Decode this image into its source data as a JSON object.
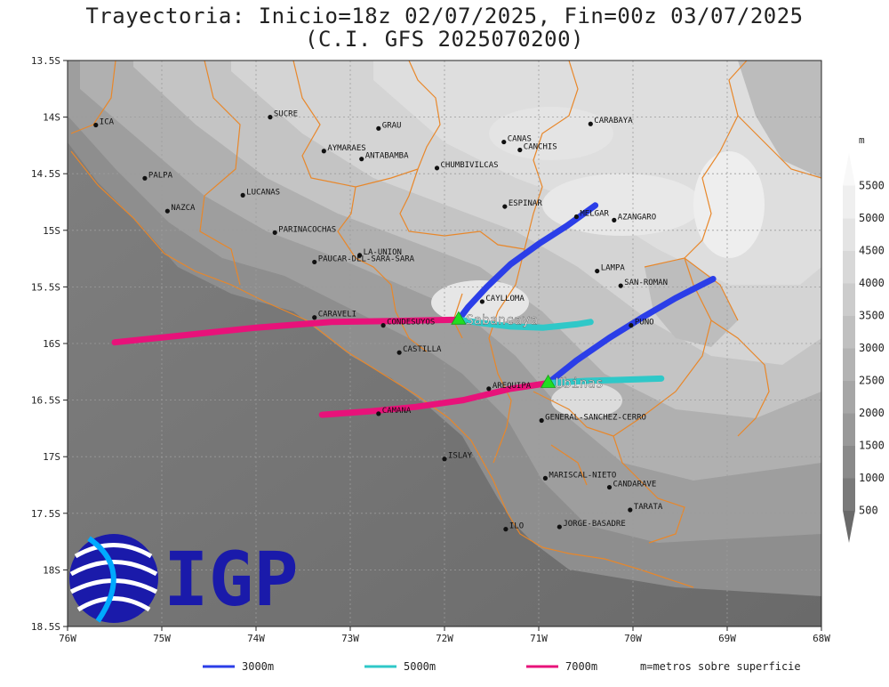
{
  "title": {
    "line1": "Trayectoria: Inicio=18z 02/07/2025, Fin=00z 03/07/2025",
    "line2": "(C.I. GFS 2025070200)"
  },
  "axes": {
    "lon_range": [
      -76,
      -68
    ],
    "lat_range": [
      -18.5,
      -13.5
    ],
    "x_ticks": [
      {
        "lon": -76,
        "label": "76W"
      },
      {
        "lon": -75,
        "label": "75W"
      },
      {
        "lon": -74,
        "label": "74W"
      },
      {
        "lon": -73,
        "label": "73W"
      },
      {
        "lon": -72,
        "label": "72W"
      },
      {
        "lon": -71,
        "label": "71W"
      },
      {
        "lon": -70,
        "label": "70W"
      },
      {
        "lon": -69,
        "label": "69W"
      },
      {
        "lon": -68,
        "label": "68W"
      }
    ],
    "y_ticks": [
      {
        "lat": -13.5,
        "label": "13.5S"
      },
      {
        "lat": -14,
        "label": "14S"
      },
      {
        "lat": -14.5,
        "label": "14.5S"
      },
      {
        "lat": -15,
        "label": "15S"
      },
      {
        "lat": -15.5,
        "label": "15.5S"
      },
      {
        "lat": -16,
        "label": "16S"
      },
      {
        "lat": -16.5,
        "label": "16.5S"
      },
      {
        "lat": -17,
        "label": "17S"
      },
      {
        "lat": -17.5,
        "label": "17.5S"
      },
      {
        "lat": -18,
        "label": "18S"
      },
      {
        "lat": -18.5,
        "label": "18.5S"
      }
    ],
    "grid": true
  },
  "colorbar": {
    "unit": "m",
    "labels": [
      "500",
      "1000",
      "1500",
      "2000",
      "2500",
      "3000",
      "3500",
      "4000",
      "4500",
      "5000",
      "5500"
    ],
    "colors": [
      "#6a6a6a",
      "#7a7a7a",
      "#8a8a8a",
      "#999999",
      "#a6a6a6",
      "#b3b3b3",
      "#c0c0c0",
      "#cccccc",
      "#d8d8d8",
      "#e4e4e4",
      "#efefef",
      "#f8f8f8"
    ]
  },
  "volcanoes": [
    {
      "name": "Sabancaya",
      "lon": -71.85,
      "lat": -15.79,
      "color": "#22dd22"
    },
    {
      "name": "Ubinas",
      "lon": -70.9,
      "lat": -16.35,
      "color": "#22dd22"
    }
  ],
  "trajectories": [
    {
      "volcano": "Sabancaya",
      "level": "3000m",
      "color": "#2b3ee8",
      "points": [
        [
          -71.85,
          -15.79
        ],
        [
          -71.75,
          -15.68
        ],
        [
          -71.55,
          -15.5
        ],
        [
          -71.3,
          -15.3
        ],
        [
          -71.0,
          -15.12
        ],
        [
          -70.7,
          -14.96
        ],
        [
          -70.4,
          -14.78
        ]
      ]
    },
    {
      "volcano": "Sabancaya",
      "level": "5000m",
      "color": "#2fc8c8",
      "points": [
        [
          -71.85,
          -15.79
        ],
        [
          -71.6,
          -15.82
        ],
        [
          -71.3,
          -15.85
        ],
        [
          -70.95,
          -15.86
        ],
        [
          -70.6,
          -15.83
        ],
        [
          -70.45,
          -15.81
        ]
      ]
    },
    {
      "volcano": "Sabancaya",
      "level": "7000m",
      "color": "#e8127a",
      "points": [
        [
          -71.85,
          -15.79
        ],
        [
          -72.5,
          -15.8
        ],
        [
          -73.2,
          -15.81
        ],
        [
          -74.0,
          -15.86
        ],
        [
          -74.8,
          -15.93
        ],
        [
          -75.5,
          -15.99
        ]
      ]
    },
    {
      "volcano": "Ubinas",
      "level": "3000m",
      "color": "#2b3ee8",
      "points": [
        [
          -70.9,
          -16.35
        ],
        [
          -70.6,
          -16.15
        ],
        [
          -70.25,
          -15.95
        ],
        [
          -69.9,
          -15.77
        ],
        [
          -69.55,
          -15.6
        ],
        [
          -69.15,
          -15.43
        ]
      ]
    },
    {
      "volcano": "Ubinas",
      "level": "5000m",
      "color": "#2fc8c8",
      "points": [
        [
          -70.9,
          -16.35
        ],
        [
          -70.5,
          -16.33
        ],
        [
          -70.1,
          -16.32
        ],
        [
          -69.7,
          -16.31
        ]
      ]
    },
    {
      "volcano": "Ubinas",
      "level": "7000m",
      "color": "#e8127a",
      "points": [
        [
          -70.9,
          -16.35
        ],
        [
          -71.3,
          -16.4
        ],
        [
          -71.8,
          -16.5
        ],
        [
          -72.3,
          -16.56
        ],
        [
          -72.8,
          -16.6
        ],
        [
          -73.3,
          -16.63
        ]
      ]
    }
  ],
  "places": [
    {
      "name": "ICA",
      "lon": -75.7,
      "lat": -14.07
    },
    {
      "name": "SUCRE",
      "lon": -73.85,
      "lat": -14.0
    },
    {
      "name": "GRAU",
      "lon": -72.7,
      "lat": -14.1
    },
    {
      "name": "AYMARAES",
      "lon": -73.28,
      "lat": -14.3
    },
    {
      "name": "ANTABAMBA",
      "lon": -72.88,
      "lat": -14.37
    },
    {
      "name": "CHUMBIVILCAS",
      "lon": -72.08,
      "lat": -14.45
    },
    {
      "name": "CANAS",
      "lon": -71.37,
      "lat": -14.22
    },
    {
      "name": "CANCHIS",
      "lon": -71.2,
      "lat": -14.29
    },
    {
      "name": "CARABAYA",
      "lon": -70.45,
      "lat": -14.06
    },
    {
      "name": "PALPA",
      "lon": -75.18,
      "lat": -14.54
    },
    {
      "name": "NAZCA",
      "lon": -74.94,
      "lat": -14.83
    },
    {
      "name": "LUCANAS",
      "lon": -74.14,
      "lat": -14.69
    },
    {
      "name": "ESPINAR",
      "lon": -71.36,
      "lat": -14.79
    },
    {
      "name": "MELGAR",
      "lon": -70.6,
      "lat": -14.88
    },
    {
      "name": "AZANGARO",
      "lon": -70.2,
      "lat": -14.91
    },
    {
      "name": "PARINACOCHAS",
      "lon": -73.8,
      "lat": -15.02
    },
    {
      "name": "LA-UNION",
      "lon": -72.9,
      "lat": -15.22
    },
    {
      "name": "PAUCAR-DEL-SARA-SARA",
      "lon": -73.38,
      "lat": -15.28
    },
    {
      "name": "LAMPA",
      "lon": -70.38,
      "lat": -15.36
    },
    {
      "name": "SAN-ROMAN",
      "lon": -70.13,
      "lat": -15.49
    },
    {
      "name": "CAYLLOMA",
      "lon": -71.6,
      "lat": -15.63
    },
    {
      "name": "CARAVELI",
      "lon": -73.38,
      "lat": -15.77
    },
    {
      "name": "CONDESUYOS",
      "lon": -72.65,
      "lat": -15.84
    },
    {
      "name": "PUNO",
      "lon": -70.02,
      "lat": -15.84
    },
    {
      "name": "CASTILLA",
      "lon": -72.48,
      "lat": -16.08
    },
    {
      "name": "AREQUIPA",
      "lon": -71.53,
      "lat": -16.4
    },
    {
      "name": "CAMANA",
      "lon": -72.7,
      "lat": -16.62
    },
    {
      "name": "GENERAL-SANCHEZ-CERRO",
      "lon": -70.97,
      "lat": -16.68
    },
    {
      "name": "ISLAY",
      "lon": -72.0,
      "lat": -17.02
    },
    {
      "name": "MARISCAL-NIETO",
      "lon": -70.93,
      "lat": -17.19
    },
    {
      "name": "CANDARAVE",
      "lon": -70.25,
      "lat": -17.27
    },
    {
      "name": "TARATA",
      "lon": -70.03,
      "lat": -17.47
    },
    {
      "name": "ILO",
      "lon": -71.35,
      "lat": -17.64
    },
    {
      "name": "JORGE-BASADRE",
      "lon": -70.78,
      "lat": -17.62
    }
  ],
  "legend": {
    "items": [
      {
        "label": "3000m",
        "color": "#2b3ee8"
      },
      {
        "label": "5000m",
        "color": "#2fc8c8"
      },
      {
        "label": "7000m",
        "color": "#e8127a"
      }
    ],
    "note": "m=metros sobre superficie"
  },
  "logo": {
    "text": "IGP",
    "color": "#1a1aaa"
  }
}
